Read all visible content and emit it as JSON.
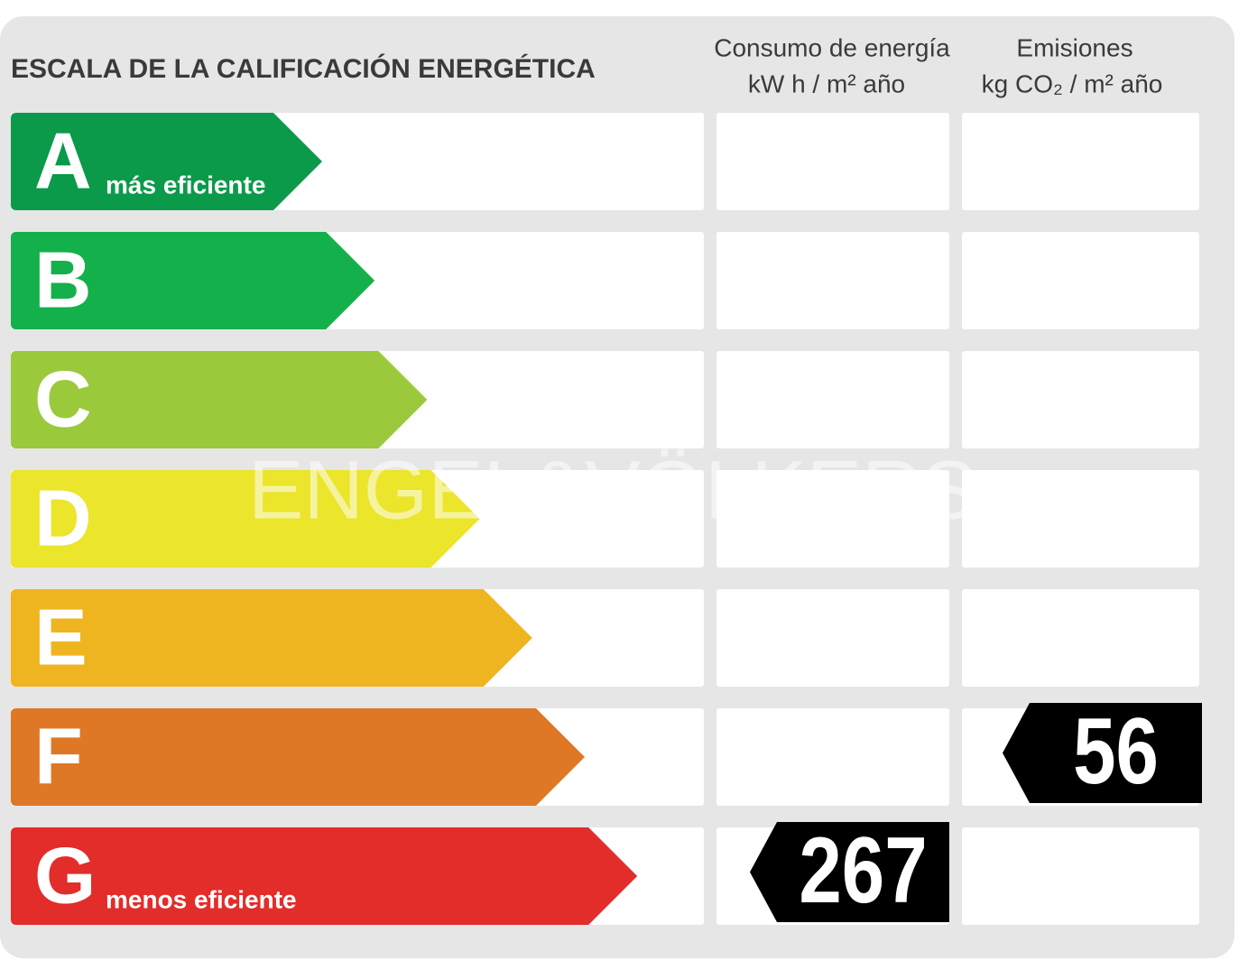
{
  "header": {
    "title": "ESCALA DE LA CALIFICACIÓN ENERGÉTICA",
    "consumption": {
      "label": "Consumo de energía",
      "unit": "kW h  / m² año"
    },
    "emissions": {
      "label": "Emisiones",
      "unit": "kg CO₂  / m² año"
    }
  },
  "rows": [
    {
      "letter": "A",
      "note": "más eficiente",
      "color": "#0a9a4a"
    },
    {
      "letter": "B",
      "color": "#14b04b"
    },
    {
      "letter": "C",
      "color": "#9bc93c"
    },
    {
      "letter": "D",
      "color": "#ebe52b"
    },
    {
      "letter": "E",
      "color": "#efb520"
    },
    {
      "letter": "F",
      "color": "#de7826",
      "emissions": 56
    },
    {
      "letter": "G",
      "note": "menos eficiente",
      "color": "#e22d2a",
      "consumption": 267
    }
  ],
  "watermark": "ENGEL&VÖLKERS"
}
